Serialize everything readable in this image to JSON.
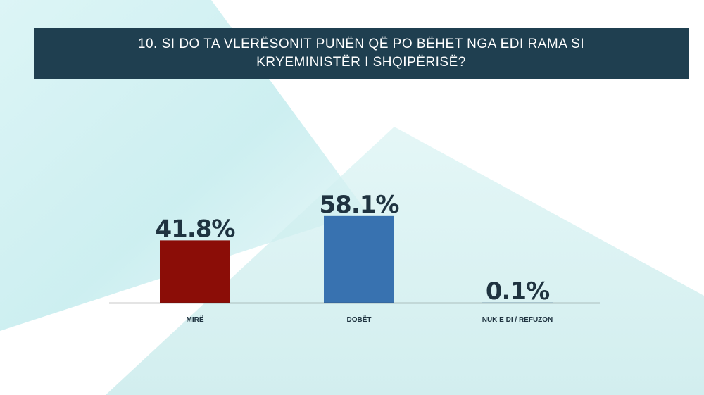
{
  "title": "10.  SI DO TA VLERËSONIT PUNËN QË PO BËHET NGA EDI RAMA SI KRYEMINISTËR I SHQIPËRISË?",
  "chart_data": {
    "type": "bar",
    "categories": [
      "MIRË",
      "DOBËT",
      "NUK E DI / REFUZON"
    ],
    "values": [
      41.8,
      58.1,
      0.1
    ],
    "value_labels": [
      "41.8%",
      "58.1%",
      "0.1%"
    ],
    "bar_colors": [
      "#8b0d07",
      "#3872b0",
      "#3872b0"
    ],
    "ylim": [
      0,
      100
    ],
    "grid": false,
    "legend": "none"
  },
  "colors": {
    "title_bg": "#1f3f50",
    "title_text": "#ffffff",
    "axis_line": "#2a2a2a",
    "label_text": "#1f3340",
    "bg_teal": "#bfe9eb"
  }
}
